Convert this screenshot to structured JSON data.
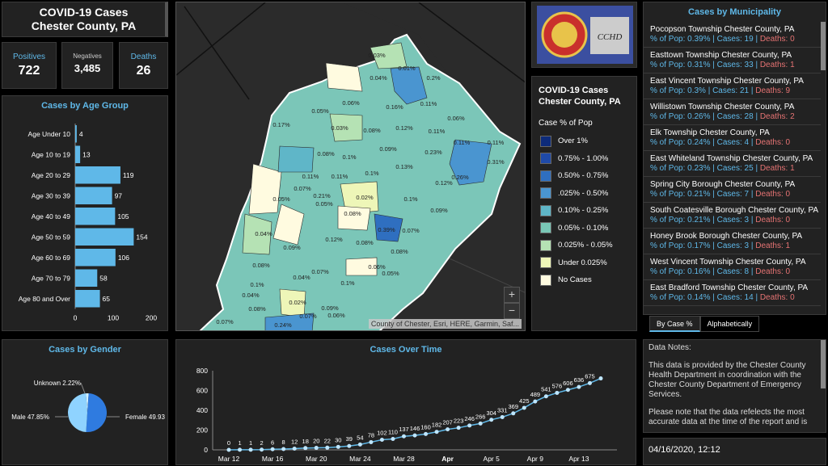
{
  "header": {
    "line1": "COVID-19 Cases",
    "line2": "Chester County, PA"
  },
  "stats": [
    {
      "label": "Positives",
      "value": "722"
    },
    {
      "label": "Negatives",
      "value": "3,485"
    },
    {
      "label": "Deaths",
      "value": "26"
    }
  ],
  "age_chart": {
    "title": "Cases by Age Group",
    "chart_data": {
      "type": "bar",
      "categories": [
        "Age Under 10",
        "Age 10 to 19",
        "Age 20 to 29",
        "Age 30 to 39",
        "Age 40 to 49",
        "Age 50 to 59",
        "Age 60 to 69",
        "Age 70 to 79",
        "Age 80 and Over"
      ],
      "values": [
        4,
        13,
        119,
        97,
        105,
        154,
        106,
        58,
        65
      ],
      "xlim": [
        0,
        200
      ],
      "ticks": [
        "0",
        "100",
        "200"
      ],
      "color": "#5fb8e8"
    }
  },
  "gender_chart": {
    "title": "Cases by Gender",
    "chart_data": {
      "type": "pie",
      "labels": [
        "Male 47.85%",
        "Female 49.93",
        "Unknown 2.22%"
      ],
      "values": [
        47.85,
        49.93,
        2.22
      ],
      "colors": [
        "#8fd3ff",
        "#2f7be0",
        "#cfefff"
      ]
    }
  },
  "time_chart": {
    "title": "Cases Over Time",
    "chart_data": {
      "type": "line",
      "values": [
        0,
        1,
        1,
        2,
        6,
        8,
        12,
        18,
        20,
        22,
        30,
        39,
        54,
        78,
        102,
        110,
        137,
        146,
        160,
        182,
        207,
        223,
        246,
        266,
        304,
        331,
        369,
        425,
        489,
        541,
        576,
        606,
        636,
        675,
        722
      ],
      "labels": [
        "0",
        "1",
        "1",
        "2",
        "6",
        "8",
        "12",
        "18",
        "20",
        "22",
        "30",
        "39",
        "54",
        "78",
        "102",
        "110",
        "137",
        "146",
        "160",
        "182",
        "207",
        "223",
        "246",
        "266",
        "304",
        "331",
        "369",
        "425",
        "489",
        "541",
        "576",
        "606",
        "636",
        "675",
        ""
      ],
      "x_ticks": [
        "Mar 12",
        "Mar 16",
        "Mar 20",
        "Mar 24",
        "Mar 28",
        "Apr",
        "Apr 5",
        "Apr 9",
        "Apr 13"
      ],
      "x_tick_index": [
        0,
        4,
        8,
        12,
        16,
        20,
        24,
        28,
        32
      ],
      "ylim": [
        0,
        800
      ],
      "y_ticks": [
        "0",
        "200",
        "400",
        "600",
        "800"
      ],
      "color": "#5fb8e8"
    }
  },
  "logo": {
    "text": "CCHD"
  },
  "legend": {
    "title1": "COVID-19 Cases",
    "title2": "Chester County, PA",
    "subtitle": "Case % of Pop",
    "items": [
      {
        "label": "Over 1%",
        "color": "#0d2b7a"
      },
      {
        "label": "0.75% - 1.00%",
        "color": "#1f4aa8"
      },
      {
        "label": "0.50% - 0.75%",
        "color": "#2f6fc0"
      },
      {
        "label": ".025% - 0.50%",
        "color": "#4a95d0"
      },
      {
        "label": "0.10% - 0.25%",
        "color": "#5fb6c8"
      },
      {
        "label": "0.05% - 0.10%",
        "color": "#79c7b6"
      },
      {
        "label": "0.025% - 0.05%",
        "color": "#b5e2b4"
      },
      {
        "label": "Under 0.025%",
        "color": "#eef6b8"
      },
      {
        "label": "No Cases",
        "color": "#fffbe0"
      }
    ]
  },
  "map": {
    "attribution": "County of Chester, Esri, HERE, Garmin, Saf...",
    "zoom_in": "+",
    "zoom_out": "−",
    "labels": [
      "0.03%",
      "0.01%",
      "0.2%",
      "0.04%",
      "0.06%",
      "0.16%",
      "0.11%",
      "0.05%",
      "0.03%",
      "0.08%",
      "0.12%",
      "0.11%",
      "0.06%",
      "0.17%",
      "0.08%",
      "0.1%",
      "0.09%",
      "0.11%",
      "0.23%",
      "0.11%",
      "0.31%",
      "0.13%",
      "0.12%",
      "0.26%",
      "0.11%",
      "0.11%",
      "0.1%",
      "0.05%",
      "0.07%",
      "0.21%",
      "0.02%",
      "0.1%",
      "0.05%",
      "0.08%",
      "0.09%",
      "0.39%",
      "0.04%",
      "0.12%",
      "0.08%",
      "0.07%",
      "0.09%",
      "0.08%",
      "0.06%",
      "0.08%",
      "0.07%",
      "0.04%",
      "0.1%",
      "0.1%",
      "0.04%",
      "0.08%",
      "0.02%",
      "0.09%",
      "0.07%",
      "0.06%",
      "0.24%",
      "0.07%",
      "0.05%"
    ]
  },
  "municipalities": {
    "title": "Cases by Municipality",
    "items": [
      {
        "name": "Pocopson Township   Chester County, PA",
        "pct": "% of Pop: 0.39%",
        "cases": "Cases: 19",
        "deaths": "Deaths: 0"
      },
      {
        "name": "Easttown Township   Chester County, PA",
        "pct": "% of Pop: 0.31%",
        "cases": "Cases: 33",
        "deaths": "Deaths: 1"
      },
      {
        "name": "East Vincent Township   Chester County, PA",
        "pct": "% of Pop: 0.3%",
        "cases": "Cases: 21",
        "deaths": "Deaths: 9"
      },
      {
        "name": "Willistown Township   Chester County, PA",
        "pct": "% of Pop: 0.26%",
        "cases": "Cases: 28",
        "deaths": "Deaths: 2"
      },
      {
        "name": "Elk Township   Chester County, PA",
        "pct": "% of Pop: 0.24%",
        "cases": "Cases: 4",
        "deaths": "Deaths: 0"
      },
      {
        "name": "East Whiteland Township   Chester County, PA",
        "pct": "% of Pop: 0.23%",
        "cases": "Cases: 25",
        "deaths": "Deaths: 1"
      },
      {
        "name": "Spring City Borough   Chester County, PA",
        "pct": "% of Pop: 0.21%",
        "cases": "Cases: 7",
        "deaths": "Deaths: 0"
      },
      {
        "name": "South Coatesville Borough   Chester County, PA",
        "pct": "% of Pop: 0.21%",
        "cases": "Cases: 3",
        "deaths": "Deaths: 0"
      },
      {
        "name": "Honey Brook Borough   Chester County, PA",
        "pct": "% of Pop: 0.17%",
        "cases": "Cases: 3",
        "deaths": "Deaths: 1"
      },
      {
        "name": "West Vincent Township   Chester County, PA",
        "pct": "% of Pop: 0.16%",
        "cases": "Cases: 8",
        "deaths": "Deaths: 0"
      },
      {
        "name": "East Bradford Township   Chester County, PA",
        "pct": "% of Pop: 0.14%",
        "cases": "Cases: 14",
        "deaths": "Deaths: 0"
      }
    ]
  },
  "tabs": [
    "By Case %",
    "Alphabetically"
  ],
  "notes": {
    "heading": "Data Notes:",
    "p1": "This data is provided by the Chester County Health Department in coordination with the Chester County Department of Emergency Services.",
    "p2": "Please note that the data refelects the most accurate data at the time of the report and is"
  },
  "date": "04/16/2020, 12:12"
}
